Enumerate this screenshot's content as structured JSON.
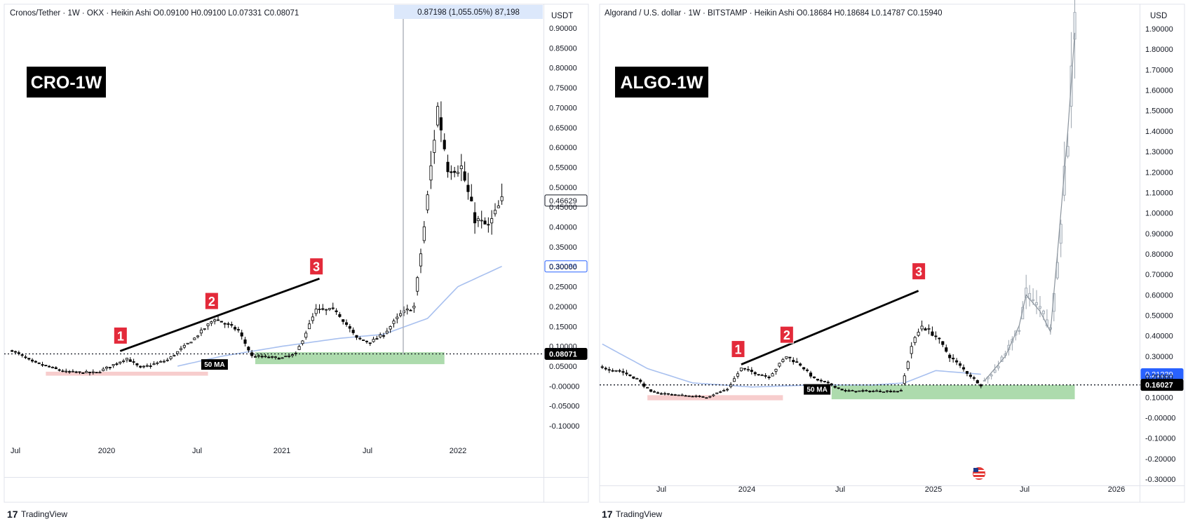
{
  "charts": [
    {
      "id": "cro",
      "header": "Cronos/Tether · 1W · OKX · Heikin Ashi  O0.09100  H0.09100  L0.07331  C0.08071",
      "badge": "CRO-1W",
      "currency": "USDT",
      "measure_label": "0.87198 (1,055.05%) 87,198",
      "ma_label": "50 MA",
      "last_price_label": "0.08071",
      "current_price_label": "0.46629",
      "ma_price_label": "0.30086",
      "markers": [
        "1",
        "2",
        "3"
      ]
    },
    {
      "id": "algo",
      "header": "Algorand / U.S. dollar · 1W · BITSTAMP · Heikin Ashi  O0.18684  H0.18684  L0.14787  C0.15940",
      "badge": "ALGO-1W",
      "currency": "USD",
      "ma_label": "50 MA",
      "last_price_label": "0.16027",
      "ma_price_label": "0.21239",
      "markers": [
        "1",
        "2",
        "3"
      ]
    }
  ],
  "footer_brand": "TradingView",
  "colors": {
    "up": "#ffffff",
    "down": "#000000",
    "ma": "#a8c0ef",
    "ma_label_text": "#2962ff",
    "support_zone": "#9fd59f",
    "low_zone": "#f6c4c4",
    "marker": "#e32a3a",
    "projection": "#9aa3ad",
    "measure_box": "#dce8fb"
  },
  "chart_data": [
    {
      "type": "candlestick",
      "title": "Cronos/Tether · 1W · OKX · Heikin Ashi",
      "ylim": [
        -0.13,
        0.96
      ],
      "y_ticks": [
        "0.90000",
        "0.85000",
        "0.80000",
        "0.75000",
        "0.70000",
        "0.65000",
        "0.60000",
        "0.55000",
        "0.50000",
        "0.45000",
        "0.40000",
        "0.35000",
        "0.30000",
        "0.25000",
        "0.20000",
        "0.15000",
        "0.10000",
        "0.05000",
        "-0.00000",
        "-0.05000",
        "-0.10000"
      ],
      "x_ticks": [
        "Jul",
        "2020",
        "Jul",
        "2021",
        "Jul",
        "2022"
      ],
      "close_keypoints": [
        {
          "x": "2019-06-24",
          "y": 0.09
        },
        {
          "x": "2019-08-05",
          "y": 0.06
        },
        {
          "x": "2019-10-14",
          "y": 0.035
        },
        {
          "x": "2019-12-16",
          "y": 0.033
        },
        {
          "x": "2020-02-17",
          "y": 0.07
        },
        {
          "x": "2020-03-16",
          "y": 0.045
        },
        {
          "x": "2020-05-11",
          "y": 0.065
        },
        {
          "x": "2020-07-06",
          "y": 0.12
        },
        {
          "x": "2020-08-17",
          "y": 0.17
        },
        {
          "x": "2020-10-05",
          "y": 0.14
        },
        {
          "x": "2020-11-02",
          "y": 0.075
        },
        {
          "x": "2021-01-04",
          "y": 0.07
        },
        {
          "x": "2021-02-01",
          "y": 0.08
        },
        {
          "x": "2021-03-15",
          "y": 0.19
        },
        {
          "x": "2021-04-26",
          "y": 0.19
        },
        {
          "x": "2021-06-07",
          "y": 0.12
        },
        {
          "x": "2021-07-05",
          "y": 0.11
        },
        {
          "x": "2021-08-02",
          "y": 0.13
        },
        {
          "x": "2021-09-06",
          "y": 0.18
        },
        {
          "x": "2021-10-04",
          "y": 0.2
        },
        {
          "x": "2021-10-25",
          "y": 0.4
        },
        {
          "x": "2021-11-22",
          "y": 0.7
        },
        {
          "x": "2021-12-13",
          "y": 0.55
        },
        {
          "x": "2022-01-10",
          "y": 0.55
        },
        {
          "x": "2022-02-07",
          "y": 0.42
        },
        {
          "x": "2022-03-07",
          "y": 0.4
        },
        {
          "x": "2022-04-04",
          "y": 0.466
        }
      ],
      "ma50_keypoints": [
        {
          "x": "2020-06-01",
          "y": 0.05
        },
        {
          "x": "2020-09-01",
          "y": 0.075
        },
        {
          "x": "2021-01-04",
          "y": 0.1
        },
        {
          "x": "2021-05-03",
          "y": 0.12
        },
        {
          "x": "2021-08-02",
          "y": 0.13
        },
        {
          "x": "2021-11-01",
          "y": 0.17
        },
        {
          "x": "2022-01-03",
          "y": 0.25
        },
        {
          "x": "2022-04-04",
          "y": 0.30086
        }
      ],
      "trendline": [
        {
          "x": "2020-02-03",
          "y": 0.088
        },
        {
          "x": "2021-03-22",
          "y": 0.27
        }
      ],
      "markers": [
        {
          "label": "1",
          "x": "2020-02-03",
          "y": 0.088
        },
        {
          "label": "2",
          "x": "2020-08-10",
          "y": 0.175
        },
        {
          "label": "3",
          "x": "2021-03-15",
          "y": 0.262
        }
      ],
      "zones": [
        {
          "name": "low zone",
          "x": [
            "2019-09-02",
            "2020-08-03"
          ],
          "y": [
            0.026,
            0.036
          ]
        },
        {
          "name": "support zone",
          "x": [
            "2020-11-09",
            "2021-12-06"
          ],
          "y": [
            0.055,
            0.085
          ]
        }
      ],
      "price_lines": {
        "last": 0.08071,
        "current": 0.46629,
        "ma": 0.30086
      }
    },
    {
      "type": "candlestick",
      "title": "Algorand / U.S. dollar · 1W · BITSTAMP · Heikin Ashi",
      "ylim": [
        -0.35,
        1.97
      ],
      "y_ticks": [
        "1.90000",
        "1.80000",
        "1.70000",
        "1.60000",
        "1.50000",
        "1.40000",
        "1.30000",
        "1.20000",
        "1.10000",
        "1.00000",
        "0.90000",
        "0.80000",
        "0.70000",
        "0.60000",
        "0.50000",
        "0.40000",
        "0.30000",
        "0.20000",
        "0.10000",
        "-0.00000",
        "-0.10000",
        "-0.20000",
        "-0.30000"
      ],
      "x_ticks": [
        "Jul",
        "2024",
        "Jul",
        "2025",
        "Jul",
        "2026"
      ],
      "close_keypoints": [
        {
          "x": "2023-03-06",
          "y": 0.245
        },
        {
          "x": "2023-04-10",
          "y": 0.23
        },
        {
          "x": "2023-05-15",
          "y": 0.19
        },
        {
          "x": "2023-06-12",
          "y": 0.125
        },
        {
          "x": "2023-08-07",
          "y": 0.11
        },
        {
          "x": "2023-10-02",
          "y": 0.1
        },
        {
          "x": "2023-11-13",
          "y": 0.14
        },
        {
          "x": "2023-12-11",
          "y": 0.24
        },
        {
          "x": "2024-01-08",
          "y": 0.22
        },
        {
          "x": "2024-02-05",
          "y": 0.2
        },
        {
          "x": "2024-03-11",
          "y": 0.3
        },
        {
          "x": "2024-04-08",
          "y": 0.26
        },
        {
          "x": "2024-05-06",
          "y": 0.19
        },
        {
          "x": "2024-06-10",
          "y": 0.16
        },
        {
          "x": "2024-07-08",
          "y": 0.13
        },
        {
          "x": "2024-09-02",
          "y": 0.13
        },
        {
          "x": "2024-10-28",
          "y": 0.13
        },
        {
          "x": "2024-11-18",
          "y": 0.35
        },
        {
          "x": "2024-12-09",
          "y": 0.45
        },
        {
          "x": "2025-01-06",
          "y": 0.4
        },
        {
          "x": "2025-02-03",
          "y": 0.3
        },
        {
          "x": "2025-03-10",
          "y": 0.22
        },
        {
          "x": "2025-04-07",
          "y": 0.1594
        }
      ],
      "ma50_keypoints": [
        {
          "x": "2023-03-06",
          "y": 0.36
        },
        {
          "x": "2023-06-05",
          "y": 0.24
        },
        {
          "x": "2023-09-04",
          "y": 0.17
        },
        {
          "x": "2024-01-01",
          "y": 0.15
        },
        {
          "x": "2024-05-06",
          "y": 0.16
        },
        {
          "x": "2024-09-02",
          "y": 0.16
        },
        {
          "x": "2024-11-04",
          "y": 0.17
        },
        {
          "x": "2025-01-06",
          "y": 0.23
        },
        {
          "x": "2025-04-07",
          "y": 0.21239
        }
      ],
      "projection_keypoints": [
        {
          "x": "2025-04-14",
          "y": 0.18
        },
        {
          "x": "2025-05-26",
          "y": 0.3
        },
        {
          "x": "2025-06-23",
          "y": 0.45
        },
        {
          "x": "2025-07-07",
          "y": 0.6
        },
        {
          "x": "2025-08-04",
          "y": 0.52
        },
        {
          "x": "2025-08-25",
          "y": 0.42
        },
        {
          "x": "2025-09-08",
          "y": 0.8
        },
        {
          "x": "2025-09-29",
          "y": 1.4
        },
        {
          "x": "2025-10-13",
          "y": 1.88
        }
      ],
      "trendline": [
        {
          "x": "2023-12-11",
          "y": 0.26
        },
        {
          "x": "2024-12-02",
          "y": 0.62
        }
      ],
      "markers": [
        {
          "label": "1",
          "x": "2023-12-04",
          "y": 0.26
        },
        {
          "label": "2",
          "x": "2024-03-11",
          "y": 0.33
        },
        {
          "label": "3",
          "x": "2024-12-02",
          "y": 0.64
        }
      ],
      "zones": [
        {
          "name": "low zone",
          "x": [
            "2023-06-05",
            "2024-03-04"
          ],
          "y": [
            0.085,
            0.11
          ]
        },
        {
          "name": "support zone",
          "x": [
            "2024-06-10",
            "2025-10-13"
          ],
          "y": [
            0.09,
            0.16
          ]
        }
      ],
      "price_lines": {
        "last": 0.16027,
        "ma": 0.21239
      }
    }
  ]
}
